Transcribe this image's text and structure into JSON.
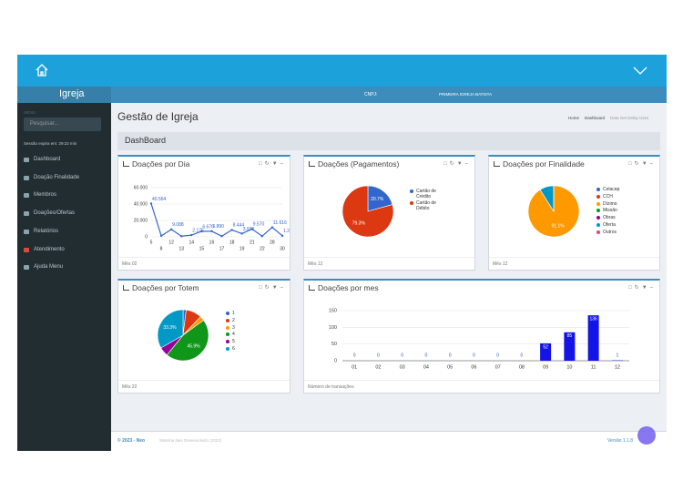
{
  "topbar": {
    "cnpj": "CNPJ:",
    "church": "PRIMEIRA IGREJA BATISTA"
  },
  "sidebar": {
    "logo": "Igreja",
    "menu_label": "MENU",
    "search_placeholder": "Pesquisar...",
    "session": "Sessão expira em: 29:22 min",
    "items": [
      "Dashboard",
      "Doação Finalidade",
      "Membros",
      "Doações/Ofertas",
      "Relatórios",
      "Atendimento",
      "Ajuda Menu"
    ]
  },
  "page_header": {
    "title": "Gestão de Igreja",
    "breadcrumb": [
      "Home",
      "Dashboard",
      "Data Get Delay Uses"
    ]
  },
  "dashboard_title": "DashBoard",
  "chart_data": [
    {
      "type": "line",
      "title": "Doações por Dia",
      "footer_note": "Mês 02",
      "color": "#3366cc",
      "categories": [
        "5",
        "8",
        "12",
        "13",
        "14",
        "15",
        "16",
        "17",
        "18",
        "19",
        "21",
        "22",
        "28",
        "30"
      ],
      "values": [
        40564,
        1200,
        9088,
        800,
        2175,
        6670,
        6890,
        800,
        8444,
        3930,
        9570,
        800,
        11616,
        1290
      ],
      "value_labels": [
        "40.564",
        null,
        "9.088",
        null,
        "2.175",
        "6.670",
        "6.890",
        null,
        "8.444",
        "3.930",
        "9.570",
        null,
        "11.616",
        "1.290"
      ],
      "ylim": [
        0,
        60000
      ],
      "yticks": [
        0,
        {
          "value": 20000,
          "label": "20.000"
        },
        {
          "value": 40000,
          "label": "40.000"
        },
        {
          "value": 60000,
          "label": "60.000"
        }
      ],
      "grid": true
    },
    {
      "type": "pie",
      "title": "Doações (Pagamentos)",
      "footer_note": "Mês 12",
      "categories": [
        "Cartão de Crédito",
        "Cartão de Débito"
      ],
      "values": [
        20.7,
        79.3
      ],
      "value_labels": [
        "20.7%",
        "79.3%"
      ],
      "colors": [
        "#3366cc",
        "#dc3912"
      ]
    },
    {
      "type": "pie",
      "title": "Doações por Finalidade",
      "footer_note": "Mês 12",
      "categories": [
        "Celacap",
        "CCH",
        "Dízimo",
        "Missão",
        "Obras",
        "Oferta",
        "Outros"
      ],
      "values": [
        0,
        0,
        91.1,
        0,
        0,
        8.9,
        0
      ],
      "value_labels": [
        null,
        null,
        "91.1%",
        null,
        null,
        null,
        null
      ],
      "colors": [
        "#3366cc",
        "#dc3912",
        "#ff9900",
        "#109618",
        "#990099",
        "#0099c6",
        "#dd4477"
      ]
    },
    {
      "type": "pie",
      "title": "Doações por Totem",
      "footer_note": "Mês 22",
      "categories": [
        "1",
        "2",
        "3",
        "4",
        "5",
        "6"
      ],
      "values": [
        2.0,
        10.1,
        2.9,
        45.9,
        5.8,
        33.3
      ],
      "value_labels": [
        null,
        null,
        null,
        "45.9%",
        null,
        "33.3%"
      ],
      "colors": [
        "#3366cc",
        "#dc3912",
        "#ff9900",
        "#109618",
        "#990099",
        "#0099c6"
      ]
    },
    {
      "type": "bar",
      "title": "Doações por mes",
      "footer_note": "Número de transações",
      "color": "#1414e6",
      "categories": [
        "01",
        "02",
        "03",
        "04",
        "05",
        "06",
        "07",
        "08",
        "09",
        "10",
        "11",
        "12"
      ],
      "values": [
        0,
        0,
        0,
        0,
        0,
        0,
        0,
        0,
        52,
        85,
        136,
        1
      ],
      "ylim": [
        0,
        150
      ],
      "yticks": [
        0,
        50,
        100,
        150
      ],
      "grid": true
    }
  ],
  "footer": {
    "copyright": "© 2023 - Neo",
    "note": "Sistema Neo Desenvolvido (2023)",
    "version": "Versão 1.1.8"
  }
}
